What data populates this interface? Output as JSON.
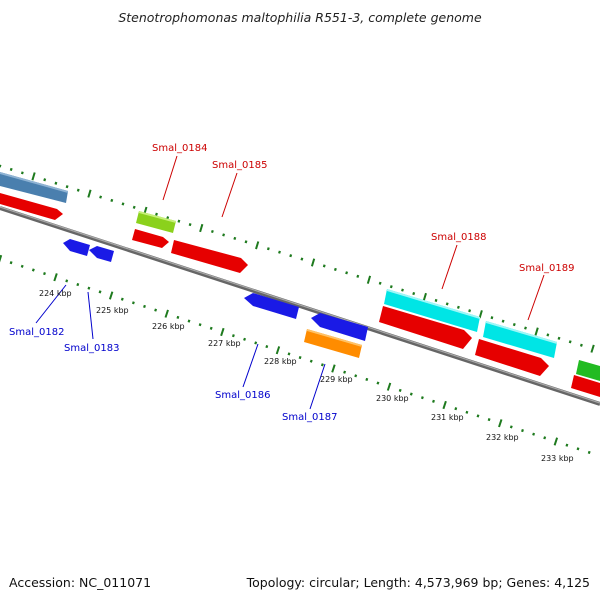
{
  "title": "Stenotrophomonas maltophilia R551-3, complete genome",
  "footer": {
    "accession": "Accession: NC_011071",
    "summary": "Topology: circular; Length: 4,573,969 bp; Genes: 4,125"
  },
  "colors": {
    "backbone": "#808080",
    "ticks": "#1e7a1e",
    "forward_label": "#cc0000",
    "reverse_label": "#0000cc",
    "kbp_label": "#111111"
  },
  "kbp_ticks": [
    "224 kbp",
    "225 kbp",
    "226 kbp",
    "227 kbp",
    "228 kbp",
    "229 kbp",
    "230 kbp",
    "231 kbp",
    "232 kbp",
    "233 kbp"
  ],
  "gene_labels": {
    "smal_0182": "Smal_0182",
    "smal_0183": "Smal_0183",
    "smal_0184": "Smal_0184",
    "smal_0185": "Smal_0185",
    "smal_0186": "Smal_0186",
    "smal_0187": "Smal_0187",
    "smal_0188": "Smal_0188",
    "smal_0189": "Smal_0189"
  }
}
